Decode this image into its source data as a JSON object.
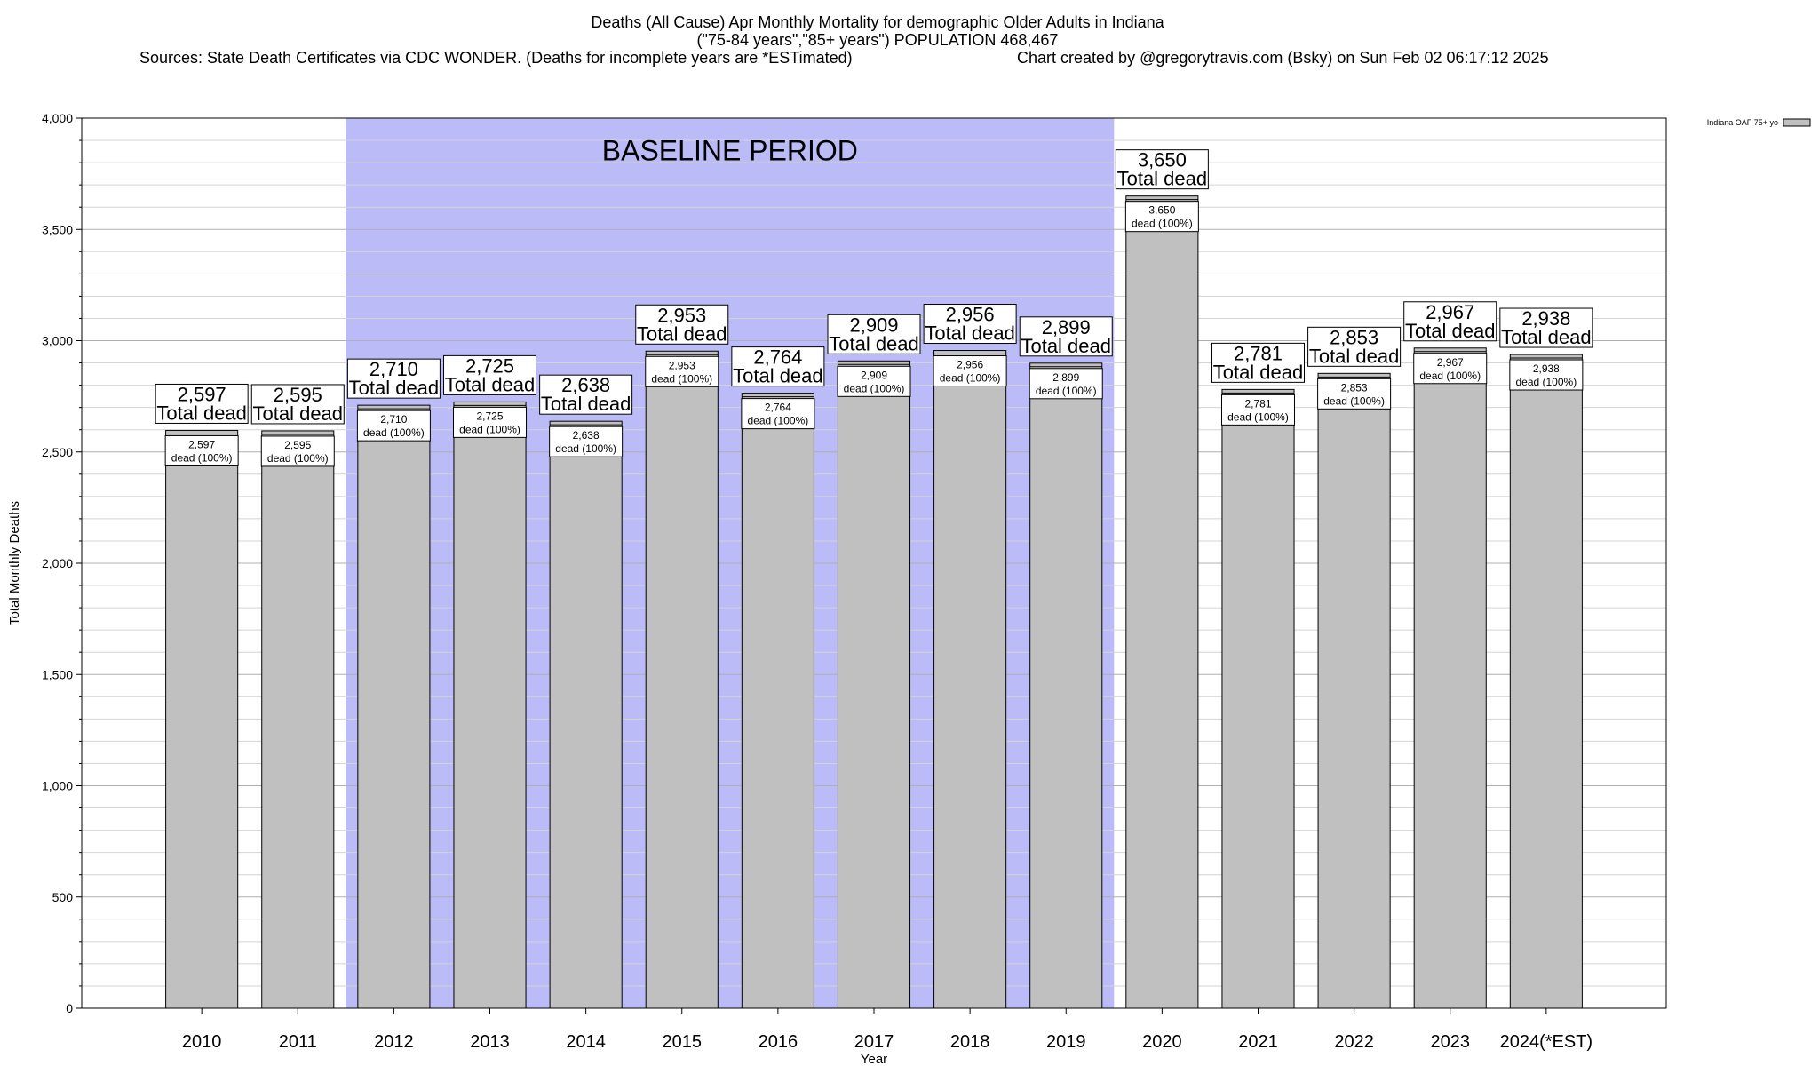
{
  "title_lines": [
    "Deaths (All Cause) Apr Monthly Mortality for demographic Older Adults in Indiana",
    "(\"75-84 years\",\"85+ years\") POPULATION 468,467",
    "Sources: State Death Certificates via CDC WONDER. (Deaths for incomplete years are *ESTimated)",
    "Chart created by @gregorytravis.com (Bsky) on Sun Feb 02 06:17:12 2025"
  ],
  "chart_data": {
    "type": "bar",
    "title": "Deaths (All Cause) Apr Monthly Mortality for demographic Older Adults in Indiana",
    "xlabel": "Year",
    "ylabel": "Total Monthly Deaths",
    "ylim": [
      0,
      4000
    ],
    "y_ticks": [
      {
        "value": 0,
        "label": "0"
      },
      {
        "value": 500,
        "label": "500"
      },
      {
        "value": 1000,
        "label": "1,000"
      },
      {
        "value": 1500,
        "label": "1,500"
      },
      {
        "value": 2000,
        "label": "2,000"
      },
      {
        "value": 2500,
        "label": "2,500"
      },
      {
        "value": 3000,
        "label": "3,000"
      },
      {
        "value": 3500,
        "label": "3,500"
      },
      {
        "value": 4000,
        "label": "4,000"
      }
    ],
    "grid": true,
    "legend_position": "top-right",
    "categories": [
      "2010",
      "2011",
      "2012",
      "2013",
      "2014",
      "2015",
      "2016",
      "2017",
      "2018",
      "2019",
      "2020",
      "2021",
      "2022",
      "2023",
      "2024(*EST)"
    ],
    "series": [
      {
        "name": "Indiana OAF 75+ yo",
        "color": "#c0c0c0",
        "values": [
          2597,
          2595,
          2710,
          2725,
          2638,
          2953,
          2764,
          2909,
          2956,
          2899,
          3650,
          2781,
          2853,
          2967,
          2938
        ],
        "labels": [
          "2,597",
          "2,595",
          "2,710",
          "2,725",
          "2,638",
          "2,953",
          "2,764",
          "2,909",
          "2,956",
          "2,899",
          "3,650",
          "2,781",
          "2,853",
          "2,967",
          "2,938"
        ]
      }
    ],
    "total_label_text": "Total dead",
    "inner_label_text": "dead (100%)",
    "baseline": {
      "label": "BASELINE PERIOD",
      "from": "2012",
      "to": "2019",
      "color": "#bbbbf7"
    }
  }
}
